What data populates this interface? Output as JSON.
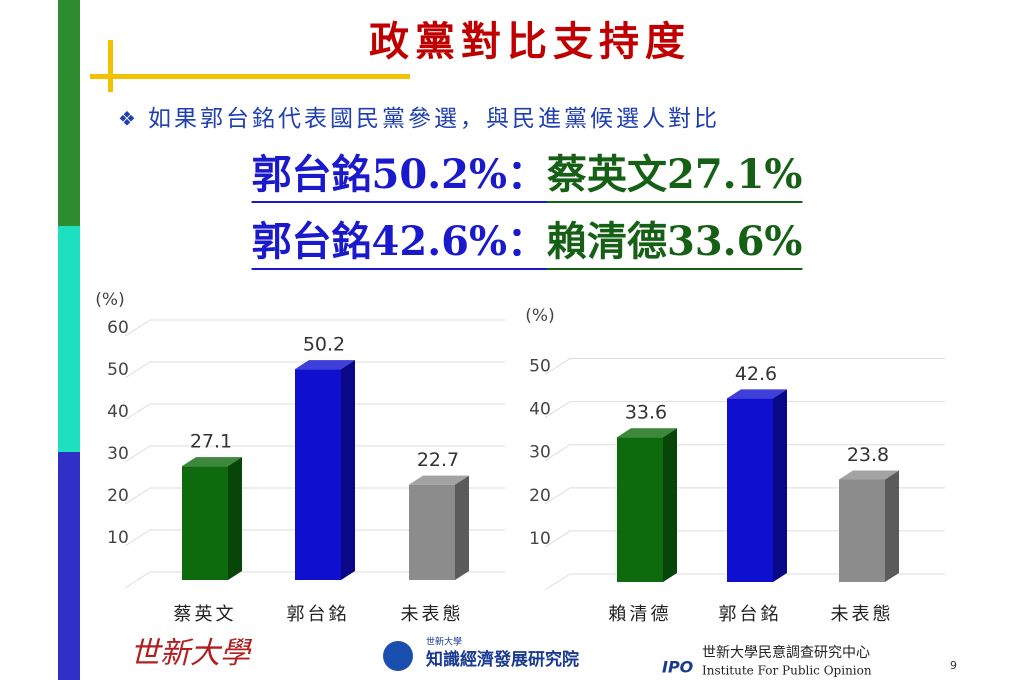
{
  "title": "政黨對比支持度",
  "bullet": "❖",
  "subtitle": "如果郭台銘代表國民黨參選，與民進黨候選人對比",
  "matchups": [
    {
      "kmt": "郭台銘50.2%",
      "sep": "：",
      "dpp": "蔡英文27.1%"
    },
    {
      "kmt": "郭台銘42.6%",
      "sep": "：",
      "dpp": "賴清德33.6%"
    }
  ],
  "footer": {
    "logo1": "世新大學",
    "logo2_small": "世新大學",
    "logo2": "知識經濟發展研究院",
    "logo3_abbr": "IPO",
    "logo3": "世新大學民意調查研究中心",
    "logo3_en": "Institute For Public Opinion",
    "page": "9"
  },
  "chart_data": [
    {
      "type": "bar",
      "ylabel": "(%)",
      "categories": [
        "蔡英文",
        "郭台銘",
        "未表態"
      ],
      "values": [
        27.1,
        50.2,
        22.7
      ],
      "colors": [
        "#0d6b0d",
        "#0f0fd0",
        "#8c8c8c"
      ],
      "ylim": [
        0,
        60
      ],
      "yticks": [
        10,
        20,
        30,
        40,
        50,
        60
      ],
      "grid": true
    },
    {
      "type": "bar",
      "ylabel": "(%)",
      "categories": [
        "賴清德",
        "郭台銘",
        "未表態"
      ],
      "values": [
        33.6,
        42.6,
        23.8
      ],
      "colors": [
        "#0d6b0d",
        "#0f0fd0",
        "#8c8c8c"
      ],
      "ylim": [
        0,
        55
      ],
      "yticks": [
        10,
        20,
        30,
        40,
        50
      ],
      "grid": true
    }
  ]
}
